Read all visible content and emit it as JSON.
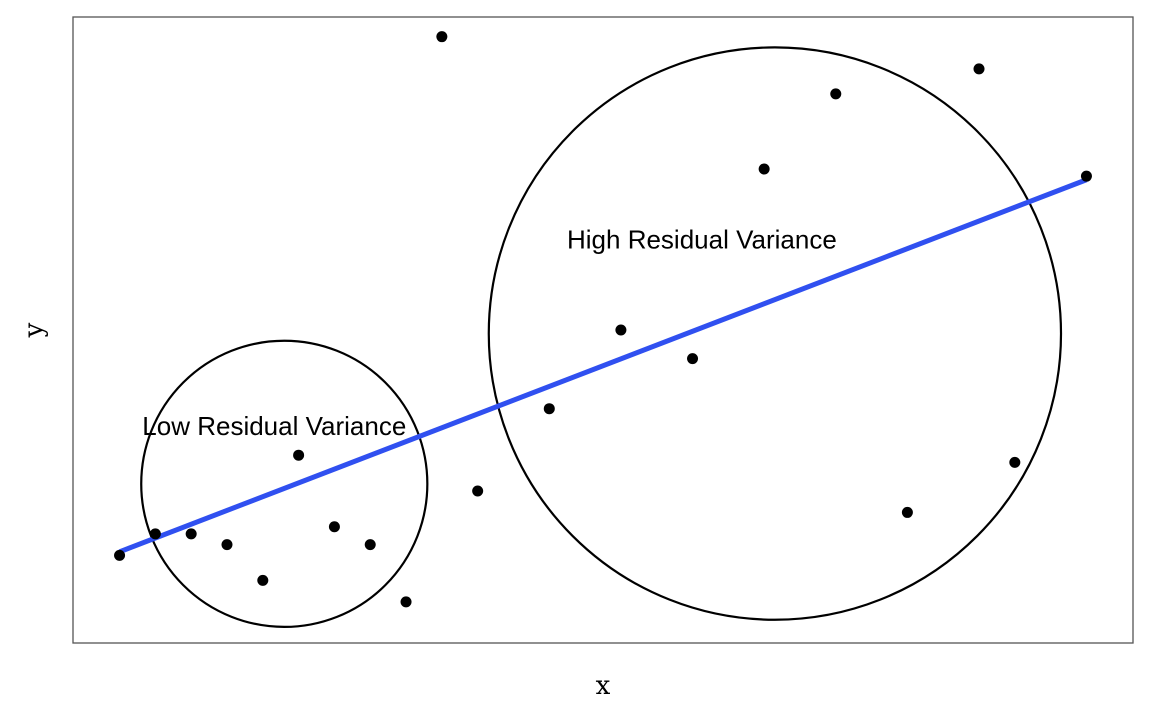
{
  "chart_data": {
    "type": "scatter",
    "xlabel": "x",
    "ylabel": "y",
    "xlim": [
      0.7,
      30.3
    ],
    "ylim": [
      -0.25,
      17.25
    ],
    "grid": false,
    "series": [
      {
        "x": [
          2,
          3,
          4,
          5,
          6,
          7,
          8,
          9,
          10,
          11,
          12,
          14,
          16,
          18,
          20,
          22,
          24,
          26,
          27,
          29
        ],
        "y": [
          2.2,
          2.8,
          2.8,
          2.5,
          1.5,
          5.0,
          3.0,
          2.5,
          0.9,
          16.7,
          4.0,
          6.3,
          8.5,
          7.7,
          13.0,
          15.1,
          3.4,
          15.8,
          4.8,
          12.8
        ]
      }
    ],
    "trend_line": {
      "color": "#3050f0",
      "x": [
        2,
        29
      ],
      "y": [
        2.3,
        12.7
      ]
    },
    "regions": [
      {
        "label": "Low Residual Variance",
        "cx": 6.6,
        "cy": 4.2,
        "r": 4.0
      },
      {
        "label": "High Residual Variance",
        "cx": 20.3,
        "cy": 8.4,
        "r": 8.0
      }
    ],
    "colors": {
      "points": "#000000",
      "line": "#3050f0",
      "panel": "#555555"
    }
  }
}
